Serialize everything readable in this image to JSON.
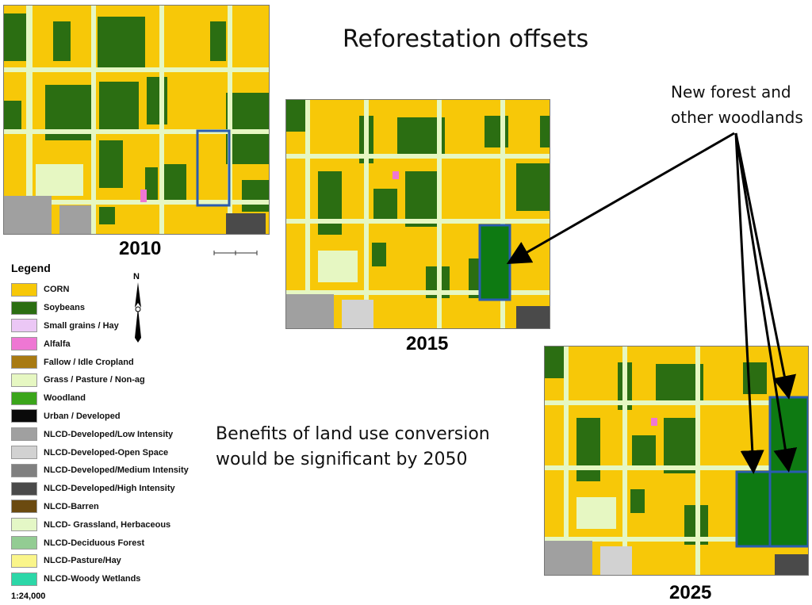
{
  "title": "Reforestation offsets",
  "maps": [
    {
      "year": "2010"
    },
    {
      "year": "2015"
    },
    {
      "year": "2025"
    }
  ],
  "callout": {
    "line1": "New forest and",
    "line2": "other woodlands"
  },
  "benefits": {
    "line1": "Benefits of land use conversion",
    "line2": "would be significant by 2050"
  },
  "legend": {
    "title": "Legend",
    "items": [
      {
        "label": "CORN",
        "color": "#F7C808"
      },
      {
        "label": "Soybeans",
        "color": "#2B6E12"
      },
      {
        "label": "Small grains / Hay",
        "color": "#EBC7F5"
      },
      {
        "label": "Alfalfa",
        "color": "#EE77D3"
      },
      {
        "label": "Fallow / Idle Cropland",
        "color": "#A87A12"
      },
      {
        "label": "Grass / Pasture / Non-ag",
        "color": "#E6F7C2"
      },
      {
        "label": "Woodland",
        "color": "#3BA51B"
      },
      {
        "label": "Urban / Developed",
        "color": "#0A0A0A"
      },
      {
        "label": "NLCD-Developed/Low Intensity",
        "color": "#A0A0A0"
      },
      {
        "label": "NLCD-Developed-Open Space",
        "color": "#D2D2D2"
      },
      {
        "label": "NLCD-Developed/Medium Intensity",
        "color": "#808080"
      },
      {
        "label": "NLCD-Developed/High Intensity",
        "color": "#4A4A4A"
      },
      {
        "label": "NLCD-Barren",
        "color": "#6B4A10"
      },
      {
        "label": "NLCD- Grassland, Herbaceous",
        "color": "#E4F7C6"
      },
      {
        "label": "NLCD-Deciduous Forest",
        "color": "#93CC93"
      },
      {
        "label": "NLCD-Pasture/Hay",
        "color": "#FAF58A"
      },
      {
        "label": "NLCD-Woody Wetlands",
        "color": "#2CD7A8"
      }
    ],
    "scale": "1:24,000"
  },
  "colors": {
    "corn": "#F7C808",
    "soy": "#2B6E12",
    "road": "#E6F7C2",
    "newForest": "#0E7A12",
    "boxOutline": "#2A5CB0"
  },
  "icons": {
    "north": "north-arrow-icon",
    "scale": "scale-bar-icon"
  }
}
